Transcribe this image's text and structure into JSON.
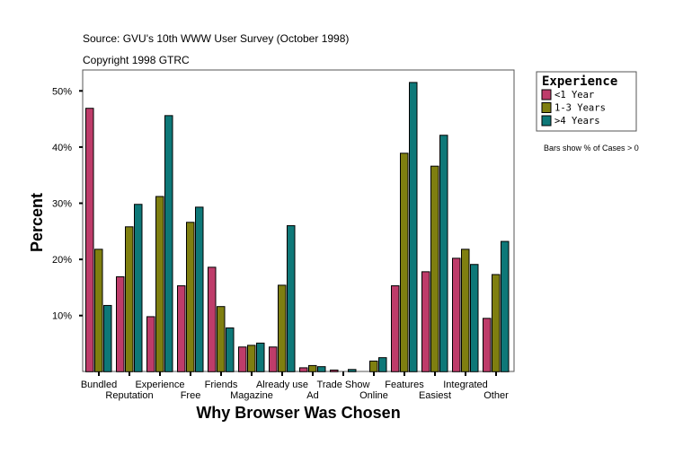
{
  "chart_data": {
    "type": "bar",
    "source_line": "Source: GVU's 10th WWW User Survey (October 1998)",
    "copyright_line": "Copyright 1998 GTRC",
    "xlabel": "Why Browser Was Chosen",
    "ylabel": "Percent",
    "ylim": [
      0,
      53.5
    ],
    "yticks": [
      10,
      20,
      30,
      40,
      50
    ],
    "ytick_labels": [
      "10%",
      "20%",
      "30%",
      "40%",
      "50%"
    ],
    "grid": false,
    "legend": {
      "title": "Experience",
      "placement": "right"
    },
    "note": "Bars show % of Cases > 0",
    "categories": [
      "Bundled",
      "Reputation",
      "Experience",
      "Free",
      "Friends",
      "Magazine",
      "Already use",
      "Ad",
      "Trade Show",
      "Online",
      "Features",
      "Easiest",
      "Integrated",
      "Other"
    ],
    "series": [
      {
        "name": "<1 Year",
        "color": "#be3c6a",
        "values": [
          46.9,
          16.9,
          9.8,
          15.3,
          18.6,
          4.4,
          4.4,
          0.7,
          0.3,
          0,
          15.3,
          17.8,
          20.2,
          9.5
        ]
      },
      {
        "name": "1-3 Years",
        "color": "#7f7f10",
        "values": [
          21.8,
          25.8,
          31.2,
          26.6,
          11.6,
          4.7,
          15.4,
          1.1,
          0,
          1.9,
          38.9,
          36.6,
          21.8,
          17.3
        ]
      },
      {
        "name": ">4 Years",
        "color": "#0e7878",
        "values": [
          11.8,
          29.8,
          45.6,
          29.3,
          7.8,
          5.1,
          26.0,
          0.9,
          0.4,
          2.5,
          51.5,
          42.1,
          19.1,
          23.2
        ]
      }
    ]
  }
}
